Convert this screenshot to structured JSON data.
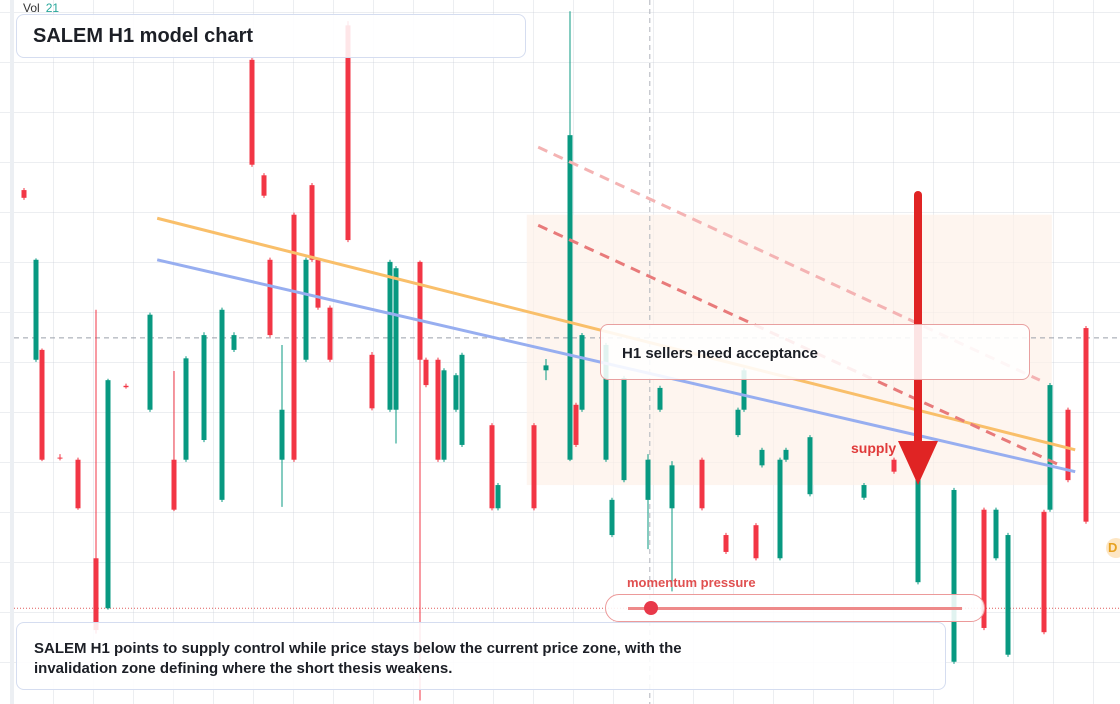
{
  "chart_data": {
    "type": "candlestick",
    "title": "SALEM H1 model chart",
    "volume_label": "Vol",
    "volume_value": "21",
    "up_color": "#089981",
    "down_color": "#f23645",
    "xlim": [
      0,
      187
    ],
    "ylim": [
      0,
      100
    ],
    "x": [
      4,
      6,
      7,
      10,
      13,
      16,
      18,
      21,
      25,
      29,
      31,
      34,
      37,
      39,
      42,
      44,
      45,
      47,
      49,
      51,
      52,
      53,
      55,
      58,
      62,
      65,
      66,
      70,
      71,
      73,
      74,
      76,
      77,
      82,
      83,
      89,
      91,
      95,
      96,
      97,
      101,
      102,
      104,
      108,
      110,
      112,
      117,
      121,
      123,
      124,
      126,
      127,
      130,
      131,
      135,
      144,
      149,
      153,
      159,
      164,
      166,
      168,
      174,
      175,
      178,
      181
    ],
    "open": [
      73.0,
      48.9,
      50.3,
      35.0,
      34.7,
      20.7,
      13.6,
      45.2,
      41.8,
      34.7,
      34.7,
      37.5,
      29.0,
      50.3,
      91.5,
      75.1,
      63.1,
      34.7,
      69.5,
      48.9,
      73.7,
      63.1,
      56.3,
      96.4,
      49.6,
      41.8,
      41.8,
      62.8,
      48.9,
      48.9,
      34.7,
      41.8,
      36.8,
      39.6,
      27.8,
      39.6,
      47.4,
      34.7,
      42.5,
      41.8,
      34.7,
      24.0,
      31.8,
      29.0,
      41.8,
      27.8,
      34.7,
      24.0,
      38.2,
      41.8,
      25.4,
      33.9,
      20.7,
      34.7,
      29.8,
      29.3,
      34.7,
      17.3,
      6.0,
      27.6,
      20.7,
      7.0,
      27.3,
      27.6,
      41.8,
      53.4
    ],
    "high": [
      73.3,
      63.3,
      50.5,
      35.5,
      35.0,
      56.0,
      46.2,
      45.5,
      55.6,
      47.3,
      49.4,
      52.8,
      56.3,
      52.8,
      91.8,
      75.4,
      63.4,
      51.0,
      69.8,
      63.4,
      74.0,
      63.4,
      56.6,
      97.0,
      50.0,
      63.1,
      62.2,
      63.0,
      49.2,
      49.2,
      47.7,
      47.0,
      49.9,
      39.9,
      31.4,
      39.9,
      49.0,
      98.4,
      42.8,
      52.7,
      51.3,
      29.3,
      46.6,
      35.5,
      45.2,
      34.5,
      35.0,
      24.3,
      42.1,
      47.7,
      25.7,
      36.4,
      35.0,
      36.4,
      38.2,
      31.4,
      35.0,
      37.8,
      30.7,
      27.9,
      27.9,
      24.3,
      27.6,
      45.6,
      42.1,
      53.7
    ],
    "low": [
      71.6,
      48.6,
      34.5,
      34.6,
      27.6,
      10.0,
      13.4,
      44.8,
      41.5,
      27.4,
      34.4,
      37.2,
      28.7,
      50.0,
      76.3,
      71.9,
      52.1,
      28.0,
      34.4,
      48.6,
      62.8,
      56.0,
      48.6,
      65.6,
      41.7,
      41.5,
      37.0,
      0.5,
      45.0,
      34.4,
      34.4,
      41.5,
      36.5,
      27.5,
      27.5,
      27.5,
      46.0,
      34.5,
      36.5,
      41.5,
      34.4,
      23.7,
      31.5,
      22.0,
      41.5,
      16.0,
      27.5,
      21.3,
      37.9,
      41.5,
      20.4,
      33.6,
      20.4,
      34.4,
      29.5,
      29.0,
      32.7,
      17.0,
      5.7,
      10.5,
      20.4,
      6.7,
      9.9,
      27.3,
      31.5,
      25.6
    ],
    "close": [
      71.9,
      63.1,
      34.7,
      34.9,
      27.8,
      10.5,
      46.0,
      45.0,
      55.3,
      27.6,
      49.1,
      52.4,
      56.0,
      52.4,
      76.6,
      72.2,
      52.4,
      41.8,
      34.7,
      63.1,
      63.1,
      56.3,
      48.9,
      65.9,
      42.0,
      62.8,
      61.9,
      48.9,
      45.3,
      34.7,
      47.4,
      46.7,
      49.6,
      27.8,
      31.1,
      27.8,
      48.1,
      80.8,
      36.8,
      52.4,
      51.0,
      29.0,
      46.3,
      34.7,
      44.9,
      33.9,
      27.8,
      21.6,
      41.8,
      47.4,
      20.7,
      36.1,
      34.7,
      36.1,
      37.9,
      31.1,
      33.0,
      37.5,
      30.4,
      10.8,
      27.6,
      24.0,
      10.2,
      45.3,
      31.8,
      25.9
    ],
    "trend_lines": [
      {
        "color": "#f9bf6a",
        "x": [
          26.2,
          179.2
        ],
        "y": [
          69.0,
          36.1
        ]
      },
      {
        "color": "#97aef0",
        "x": [
          26.2,
          179.2
        ],
        "y": [
          63.1,
          33.0
        ]
      },
      {
        "color": "#e87a7a",
        "x": [
          89.7,
          176.7
        ],
        "y": [
          68.0,
          33.9
        ],
        "dash": true
      },
      {
        "color": "#f4b3b3",
        "x": [
          89.7,
          173.3
        ],
        "y": [
          79.1,
          46.0
        ],
        "dash": true
      }
    ],
    "zone": {
      "x": [
        87.8,
        175.3
      ],
      "y": [
        31.1,
        69.5
      ],
      "color": "#fdf1e8"
    },
    "price_line": 52.0,
    "alert_line": 13.6,
    "cursor_x": 108.3,
    "arrow": {
      "x": 153,
      "y": [
        72.3,
        31.1
      ],
      "color": "#e02424"
    },
    "annotations": {
      "callout": "H1 sellers need acceptance",
      "supply": "supply",
      "momentum": "momentum pressure",
      "note": "SALEM H1 points to supply control while price stays below the current price zone, with the invalidation zone defining where the short thesis weakens.",
      "badge": "D"
    }
  }
}
